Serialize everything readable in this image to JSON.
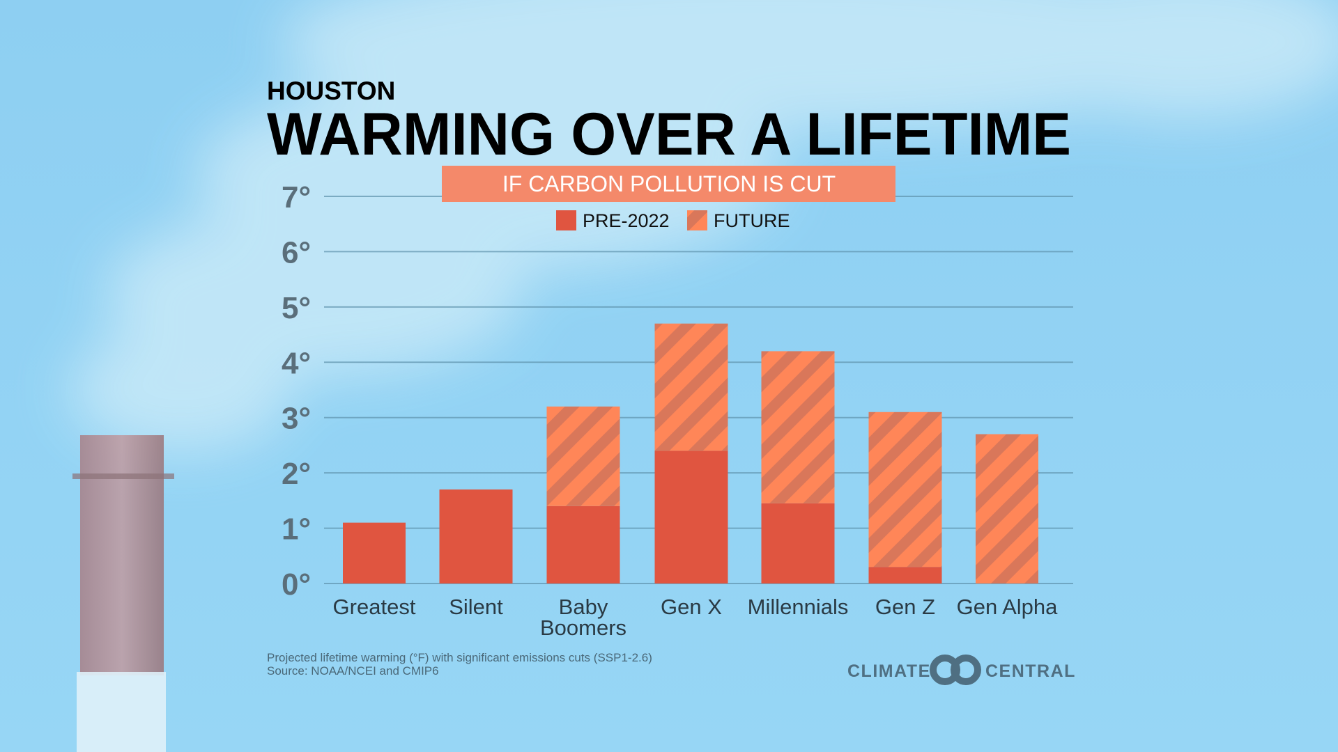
{
  "header": {
    "city": "HOUSTON",
    "title": "WARMING OVER A LIFETIME",
    "banner": "IF CARBON POLLUTION IS CUT"
  },
  "colors": {
    "background": "#92d4f4",
    "pre_2022": "#e05540",
    "future_light": "#ff8658",
    "future_dark": "#d9775a",
    "banner": "#f4896a",
    "text": "#111111",
    "footnote": "#4a6878",
    "logo": "#4f6f82"
  },
  "chart_data": {
    "type": "bar",
    "stacked": true,
    "title": "WARMING OVER A LIFETIME",
    "subtitle": "IF CARBON POLLUTION IS CUT",
    "categories": [
      "Greatest",
      "Silent",
      "Baby Boomers",
      "Gen X",
      "Millennials",
      "Gen Z",
      "Gen Alpha"
    ],
    "category_lines": [
      [
        "Greatest"
      ],
      [
        "Silent"
      ],
      [
        "Baby",
        "Boomers"
      ],
      [
        "Gen X"
      ],
      [
        "Millennials"
      ],
      [
        "Gen Z"
      ],
      [
        "Gen Alpha"
      ]
    ],
    "series": [
      {
        "name": "PRE-2022",
        "pattern": "solid",
        "values": [
          1.1,
          1.7,
          1.4,
          2.4,
          1.45,
          0.3,
          0
        ]
      },
      {
        "name": "FUTURE",
        "pattern": "hatched",
        "values": [
          0,
          0,
          1.8,
          2.3,
          2.75,
          2.8,
          2.7
        ]
      }
    ],
    "ylim": [
      0,
      7
    ],
    "yticks": [
      0,
      1,
      2,
      3,
      4,
      5,
      6,
      7
    ],
    "ytick_labels": [
      "0°",
      "1°",
      "2°",
      "3°",
      "4°",
      "5°",
      "6°",
      "7°"
    ],
    "grid": true,
    "legend": "top-center",
    "unit": "°F"
  },
  "footnote": {
    "line1": "Projected lifetime warming (°F) with significant emissions cuts (SSP1-2.6)",
    "line2": "Source: NOAA/NCEI and CMIP6"
  },
  "logo": {
    "left": "CLIMATE",
    "right": "CENTRAL"
  }
}
